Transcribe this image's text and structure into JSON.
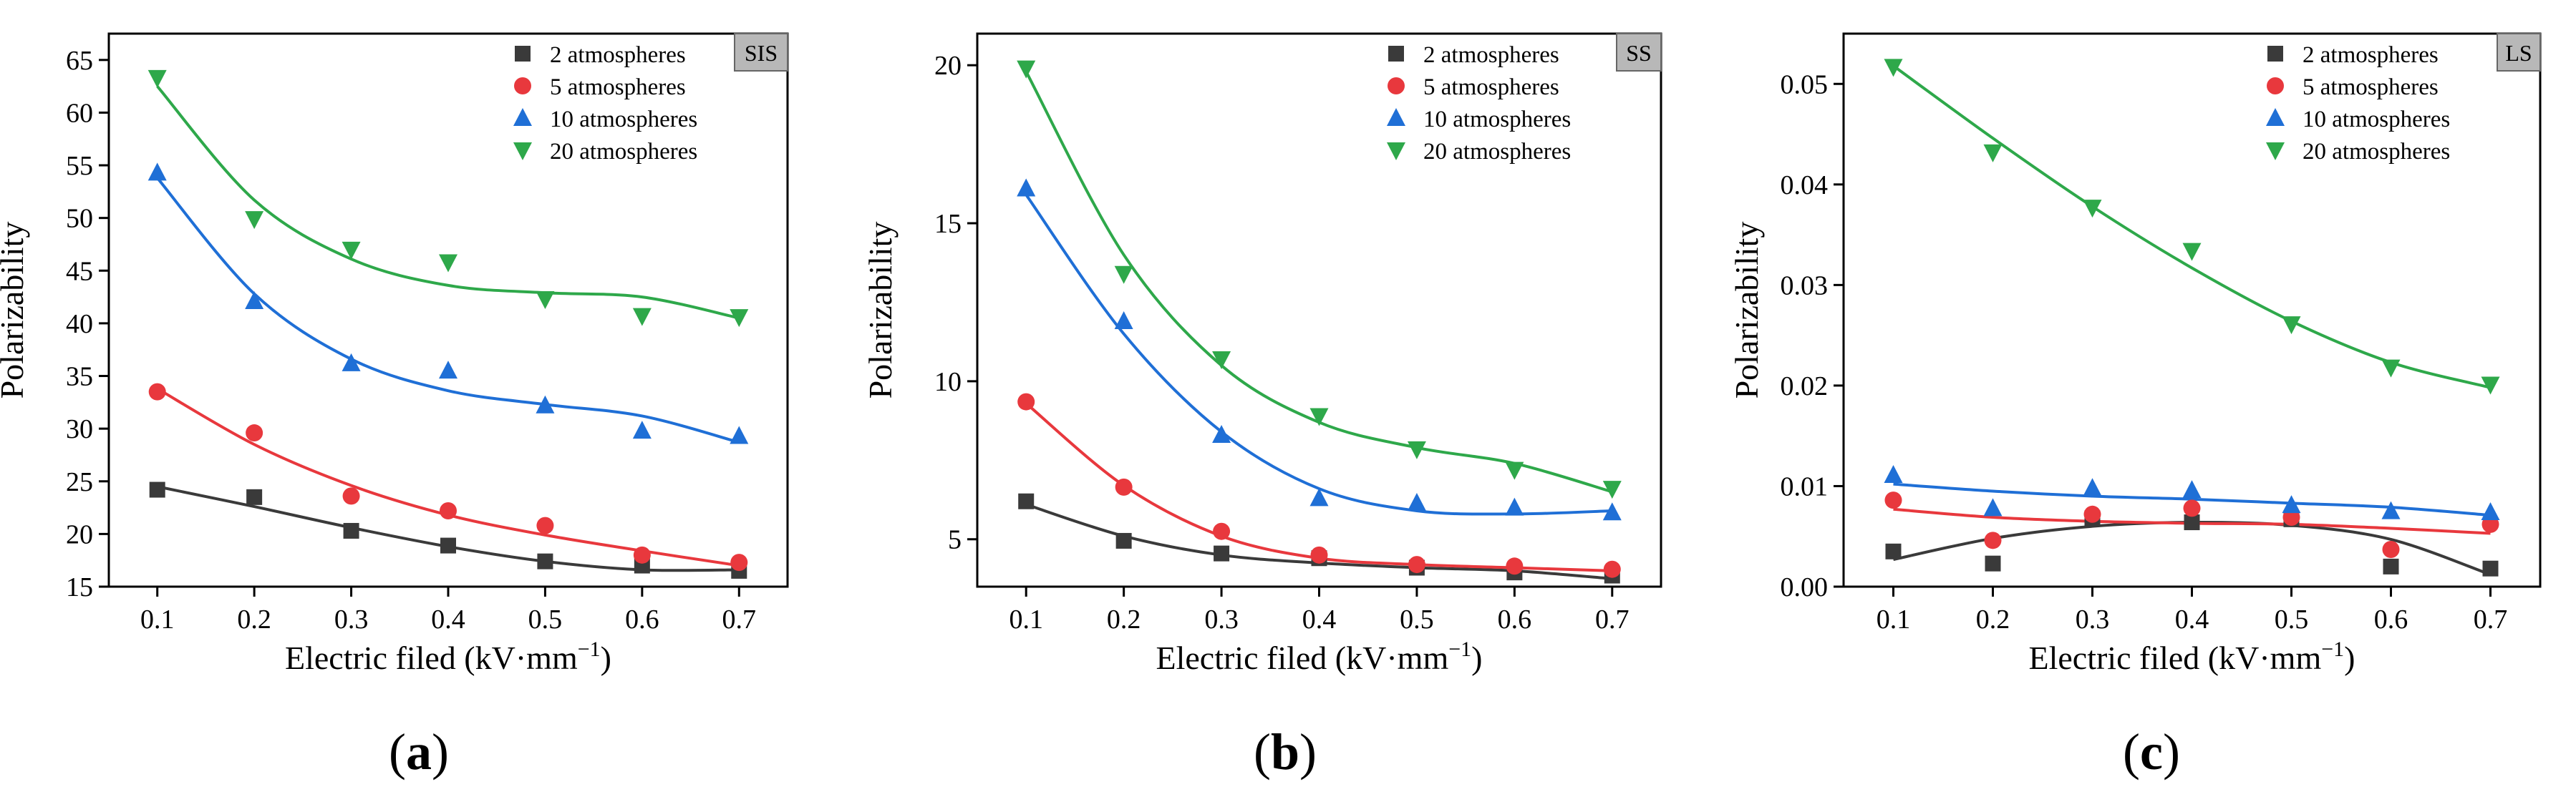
{
  "figure": {
    "panels": [
      {
        "label_open": "(",
        "label_letter": "a",
        "label_close": ")"
      },
      {
        "label_open": "(",
        "label_letter": "b",
        "label_close": ")"
      },
      {
        "label_open": "(",
        "label_letter": "c",
        "label_close": ")"
      }
    ]
  },
  "colors": {
    "2 atmospheres": "#3a3a3a",
    "5 atmospheres": "#e8383d",
    "10 atmospheres": "#1f6fd6",
    "20 atmospheres": "#2ea84a",
    "badge_fill": "#b8b8b8"
  },
  "chart_data": [
    {
      "type": "scatter",
      "panel": "a",
      "badge": "SIS",
      "xlabel": "Electric filed (kV·mm",
      "xlabel_sup": "−1",
      "xlabel_close": ")",
      "ylabel": "Polarizability",
      "xlim": [
        0.05,
        0.75
      ],
      "ylim": [
        15,
        67.5
      ],
      "xticks": [
        0.1,
        0.2,
        0.3,
        0.4,
        0.5,
        0.6,
        0.7
      ],
      "xtick_labels": [
        "0.1",
        "0.2",
        "0.3",
        "0.4",
        "0.5",
        "0.6",
        "0.7"
      ],
      "yticks": [
        15,
        20,
        25,
        30,
        35,
        40,
        45,
        50,
        55,
        60,
        65
      ],
      "ytick_labels": [
        "15",
        "20",
        "25",
        "30",
        "35",
        "40",
        "45",
        "50",
        "55",
        "60",
        "65"
      ],
      "x": [
        0.1,
        0.2,
        0.3,
        0.4,
        0.5,
        0.6,
        0.7
      ],
      "series": [
        {
          "name": "2 atmospheres",
          "marker": "square",
          "values": [
            24.2,
            23.5,
            20.3,
            18.9,
            17.4,
            17.0,
            16.5
          ],
          "fit": [
            24.5,
            22.6,
            20.6,
            18.8,
            17.4,
            16.6,
            16.6
          ]
        },
        {
          "name": "5 atmospheres",
          "marker": "circle",
          "values": [
            33.5,
            29.6,
            23.6,
            22.2,
            20.8,
            18.0,
            17.3
          ],
          "fit": [
            33.8,
            28.5,
            24.6,
            21.8,
            19.9,
            18.4,
            17.0
          ]
        },
        {
          "name": "10 atmospheres",
          "marker": "triangle-up",
          "values": [
            54.3,
            42.1,
            36.2,
            35.5,
            32.2,
            29.8,
            29.3
          ],
          "fit": [
            53.8,
            42.8,
            36.6,
            33.6,
            32.3,
            31.2,
            28.7
          ]
        },
        {
          "name": "20 atmospheres",
          "marker": "triangle-down",
          "values": [
            63.3,
            49.9,
            47.0,
            45.8,
            42.3,
            40.7,
            40.6
          ],
          "fit": [
            62.5,
            51.7,
            46.1,
            43.6,
            42.9,
            42.5,
            40.5
          ]
        }
      ]
    },
    {
      "type": "scatter",
      "panel": "b",
      "badge": "SS",
      "xlabel": "Electric filed (kV·mm",
      "xlabel_sup": "−1",
      "xlabel_close": ")",
      "ylabel": "Polarizability",
      "xlim": [
        0.05,
        0.75
      ],
      "ylim": [
        3.5,
        21
      ],
      "xticks": [
        0.1,
        0.2,
        0.3,
        0.4,
        0.5,
        0.6,
        0.7
      ],
      "xtick_labels": [
        "0.1",
        "0.2",
        "0.3",
        "0.4",
        "0.5",
        "0.6",
        "0.7"
      ],
      "yticks": [
        5,
        10,
        15,
        20
      ],
      "ytick_labels": [
        "5",
        "10",
        "15",
        "20"
      ],
      "x": [
        0.1,
        0.2,
        0.3,
        0.4,
        0.5,
        0.6,
        0.7
      ],
      "series": [
        {
          "name": "2 atmospheres",
          "marker": "square",
          "values": [
            6.2,
            4.95,
            4.55,
            4.4,
            4.1,
            3.95,
            3.85
          ],
          "fit": [
            6.1,
            5.1,
            4.5,
            4.25,
            4.1,
            4.0,
            3.75
          ]
        },
        {
          "name": "5 atmospheres",
          "marker": "circle",
          "values": [
            9.35,
            6.65,
            5.25,
            4.5,
            4.2,
            4.15,
            4.05
          ],
          "fit": [
            9.3,
            6.7,
            5.1,
            4.4,
            4.2,
            4.1,
            4.0
          ]
        },
        {
          "name": "10 atmospheres",
          "marker": "triangle-up",
          "values": [
            16.1,
            11.9,
            8.3,
            6.3,
            6.15,
            6.0,
            5.85
          ],
          "fit": [
            15.9,
            11.5,
            8.4,
            6.6,
            5.9,
            5.8,
            5.9
          ]
        },
        {
          "name": "20 atmospheres",
          "marker": "triangle-down",
          "values": [
            19.9,
            13.4,
            10.7,
            8.9,
            7.85,
            7.2,
            6.6
          ],
          "fit": [
            19.8,
            14.0,
            10.5,
            8.7,
            7.9,
            7.4,
            6.5
          ]
        }
      ]
    },
    {
      "type": "scatter",
      "panel": "c",
      "badge": "LS",
      "xlabel": "Electric filed (kV·mm",
      "xlabel_sup": "−1",
      "xlabel_close": ")",
      "ylabel": "Polarizability",
      "xlim": [
        0.05,
        0.75
      ],
      "ylim": [
        0,
        0.055
      ],
      "xticks": [
        0.1,
        0.2,
        0.3,
        0.4,
        0.5,
        0.6,
        0.7
      ],
      "xtick_labels": [
        "0.1",
        "0.2",
        "0.3",
        "0.4",
        "0.5",
        "0.6",
        "0.7"
      ],
      "yticks": [
        0,
        0.01,
        0.02,
        0.03,
        0.04,
        0.05
      ],
      "ytick_labels": [
        "0.00",
        "0.01",
        "0.02",
        "0.03",
        "0.04",
        "0.05"
      ],
      "x": [
        0.1,
        0.2,
        0.3,
        0.4,
        0.5,
        0.6,
        0.7
      ],
      "series": [
        {
          "name": "2 atmospheres",
          "marker": "square",
          "values": [
            0.0035,
            0.0023,
            0.0068,
            0.0064,
            0.0067,
            0.002,
            0.0018
          ],
          "fit": [
            0.0027,
            0.0048,
            0.006,
            0.0064,
            0.0061,
            0.0047,
            0.0012
          ]
        },
        {
          "name": "5 atmospheres",
          "marker": "circle",
          "values": [
            0.0086,
            0.0046,
            0.0072,
            0.0078,
            0.0069,
            0.0037,
            0.0062
          ],
          "fit": [
            0.0077,
            0.0069,
            0.0065,
            0.0063,
            0.0062,
            0.0058,
            0.0053
          ]
        },
        {
          "name": "10 atmospheres",
          "marker": "triangle-up",
          "values": [
            0.0111,
            0.0078,
            0.0098,
            0.0096,
            0.0081,
            0.0075,
            0.0074
          ],
          "fit": [
            0.0102,
            0.0095,
            0.009,
            0.0087,
            0.0083,
            0.0079,
            0.0071
          ]
        },
        {
          "name": "20 atmospheres",
          "marker": "triangle-down",
          "values": [
            0.0517,
            0.0432,
            0.0377,
            0.0334,
            0.0261,
            0.0218,
            0.0201
          ],
          "fit": [
            0.0518,
            0.0446,
            0.0378,
            0.0317,
            0.0264,
            0.0223,
            0.0198
          ]
        }
      ]
    }
  ]
}
